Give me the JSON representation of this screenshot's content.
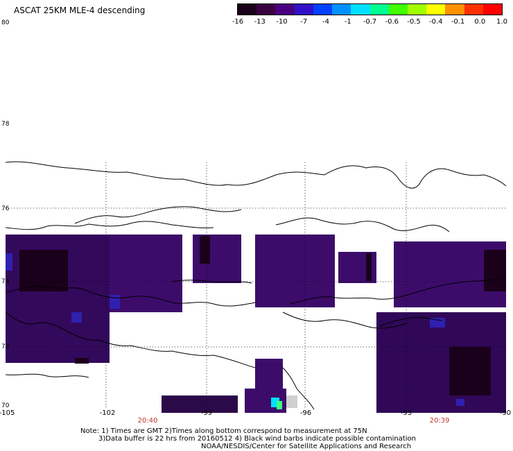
{
  "title": "ASCAT 25KM MLE-4 descending",
  "colorbar": {
    "labels": [
      "-16",
      "-13",
      "-10",
      "-7",
      "-4",
      "-1",
      "-0.7",
      "-0.6",
      "-0.5",
      "-0.4",
      "-0.1",
      "0.0",
      "1.0"
    ],
    "colors": [
      "#1a001a",
      "#3a0040",
      "#4a0080",
      "#3010c8",
      "#0040ff",
      "#0090ff",
      "#00e0ff",
      "#00ff90",
      "#40ff00",
      "#a0ff00",
      "#ffff00",
      "#ff9000",
      "#ff3000",
      "#ff0000"
    ]
  },
  "lat_labels": [
    "80",
    "78",
    "76",
    "74",
    "72",
    "70"
  ],
  "lon_labels": [
    "-105",
    "-102",
    "-99",
    "-96",
    "-93",
    "-90"
  ],
  "time_labels": [
    "20:40",
    "20:39"
  ],
  "notes": {
    "line1": "Note: 1) Times are GMT 2)Times along bottom correspond to measurement at 75N",
    "line2": "3)Data buffer is 22 hrs from 20160512 4) Black wind barbs indicate possible contamination",
    "line3": "NOAA/NESDIS/Center for Satellite Applications and Research"
  }
}
